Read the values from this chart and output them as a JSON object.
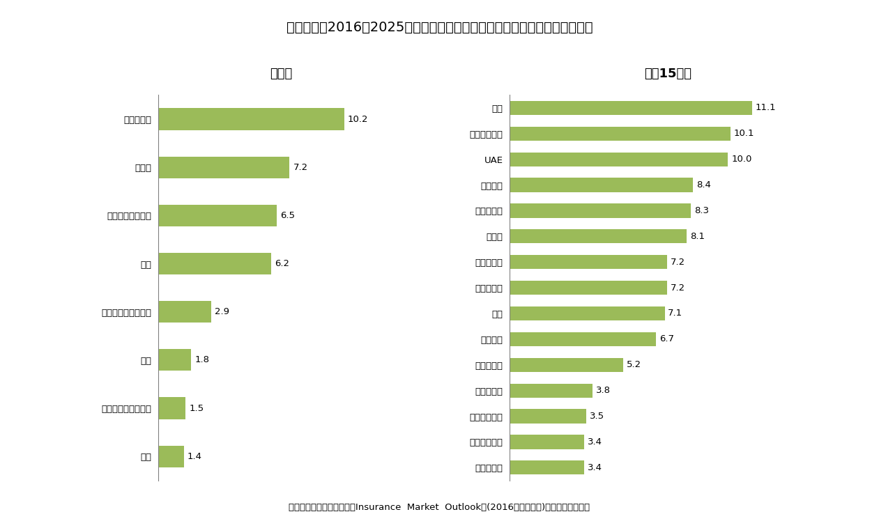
{
  "title": "図表－２　2016－2025年の期間における生命保険料の増収率（年平均％）",
  "left_title": "地域別",
  "right_title": "上伕15市場",
  "left_categories": [
    "新兴アジア",
    "中南米",
    "中東・北アフリカ",
    "東欧",
    "サハラ以南アフリカ",
    "北米",
    "先進アジア・太洋州",
    "西欧"
  ],
  "left_values": [
    10.2,
    7.2,
    6.5,
    6.2,
    2.9,
    1.8,
    1.5,
    1.4
  ],
  "right_categories": [
    "中国",
    "インドネシア",
    "UAE",
    "ブラジル",
    "フィリピン",
    "インド",
    "ポーランド",
    "コロンビア",
    "タイ",
    "メキシコ",
    "マレーシア",
    "イスラエル",
    "シンガポール",
    "フィンランド",
    "ノルウェー"
  ],
  "right_values": [
    11.1,
    10.1,
    10.0,
    8.4,
    8.3,
    8.1,
    7.2,
    7.2,
    7.1,
    6.7,
    5.2,
    3.8,
    3.5,
    3.4,
    3.4
  ],
  "bar_color": "#9BBB59",
  "background_color": "#FFFFFF",
  "footer": "出所：ミュンヘン再保険『Insurance  Market  Outlook』(2016年５月公表)をもとに筆者作成",
  "title_fontsize": 14,
  "subtitle_fontsize": 13,
  "label_fontsize": 9.5,
  "value_fontsize": 9.5,
  "footer_fontsize": 9.5
}
